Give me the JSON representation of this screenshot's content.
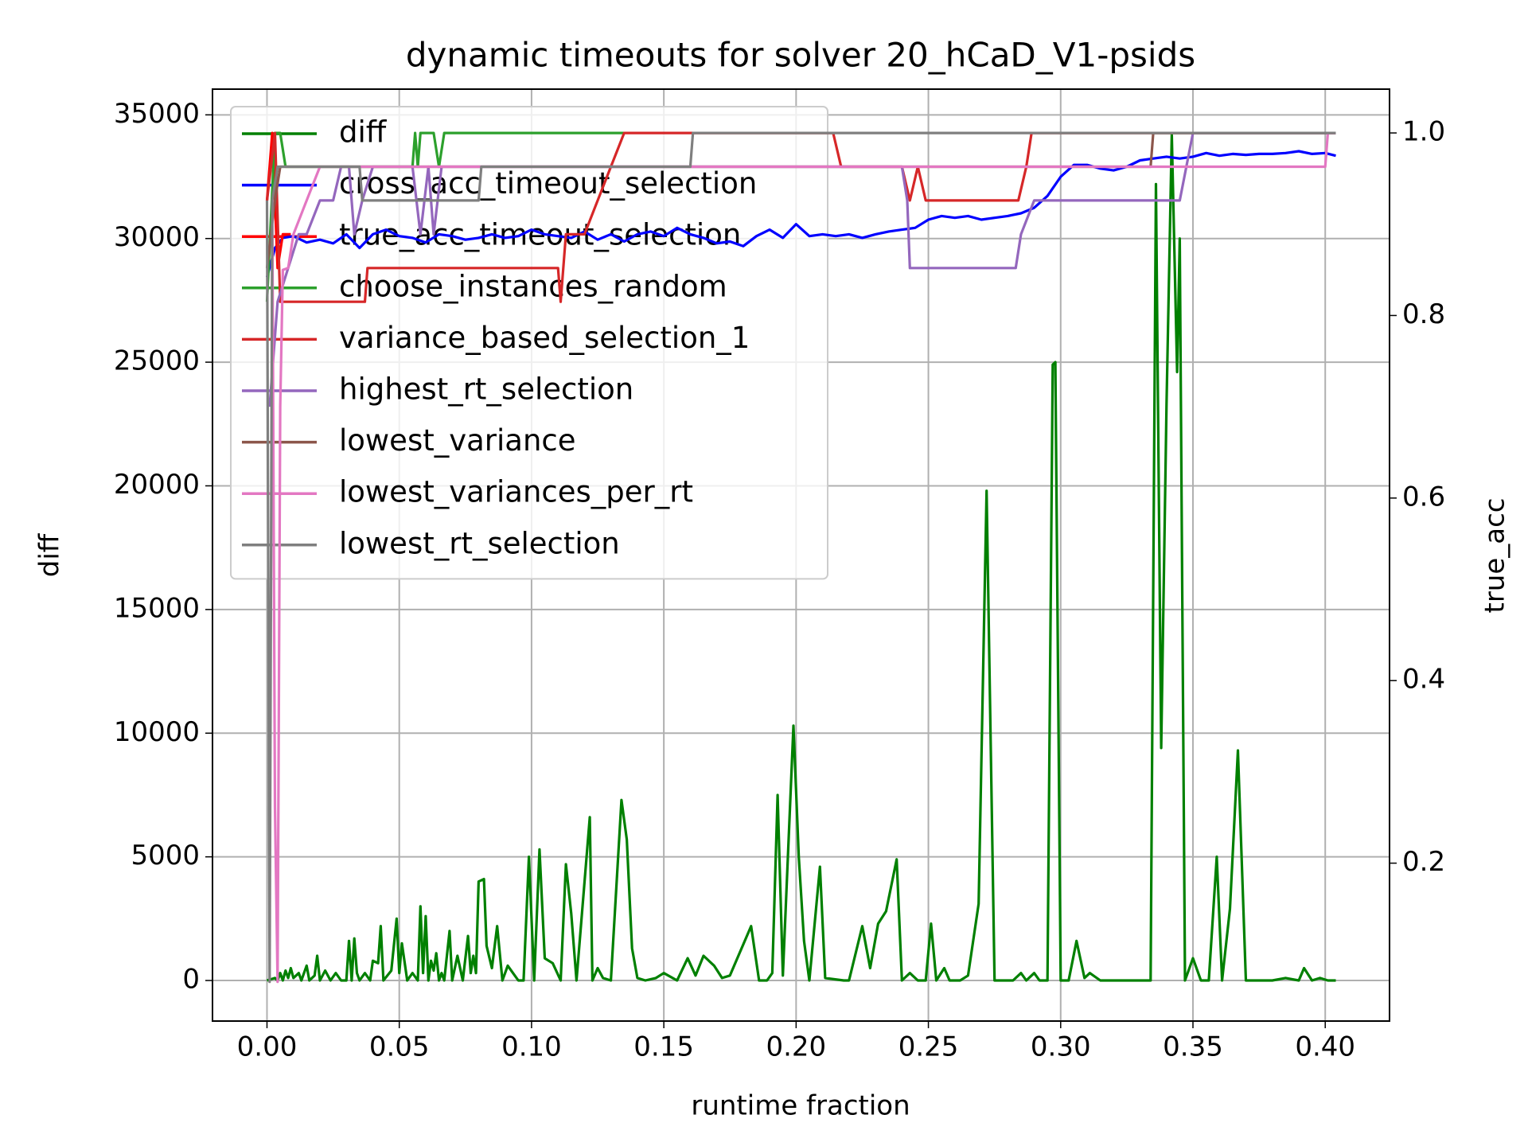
{
  "chart_data": {
    "type": "line",
    "title": "dynamic timeouts for solver 20_hCaD_V1-psids",
    "xlabel": "runtime fraction",
    "ylabel": "diff",
    "y2label": "true_acc",
    "ylabel_color": "green",
    "y2label_color": "red",
    "xlim": [
      -0.0206,
      0.4243
    ],
    "ylim": [
      -1640,
      36040
    ],
    "y2lim": [
      0.027,
      1.048
    ],
    "xticks": [
      {
        "value": 0,
        "label": "0.00"
      },
      {
        "value": 0.05,
        "label": "0.05"
      },
      {
        "value": 0.1,
        "label": "0.10"
      },
      {
        "value": 0.15,
        "label": "0.15"
      },
      {
        "value": 0.2,
        "label": "0.20"
      },
      {
        "value": 0.25,
        "label": "0.25"
      },
      {
        "value": 0.3,
        "label": "0.30"
      },
      {
        "value": 0.35,
        "label": "0.35"
      },
      {
        "value": 0.4,
        "label": "0.40"
      }
    ],
    "yticks": [
      0,
      5000,
      10000,
      15000,
      20000,
      25000,
      30000,
      35000
    ],
    "y2ticks": [
      0.2,
      0.4,
      0.6,
      0.8,
      {
        "value": 1,
        "label": "1.0"
      }
    ],
    "grid": true,
    "legend": "upper left",
    "series": [
      {
        "name": "diff",
        "color": "#008000",
        "axis": "y",
        "x": [
          0,
          0.003,
          0.004,
          0.005,
          0.006,
          0.007,
          0.008,
          0.009,
          0.01,
          0.012,
          0.013,
          0.015,
          0.016,
          0.018,
          0.019,
          0.02,
          0.022,
          0.024,
          0.026,
          0.028,
          0.03,
          0.031,
          0.032,
          0.033,
          0.034,
          0.035,
          0.037,
          0.039,
          0.04,
          0.042,
          0.043,
          0.044,
          0.047,
          0.049,
          0.05,
          0.051,
          0.053,
          0.055,
          0.057,
          0.058,
          0.059,
          0.06,
          0.061,
          0.062,
          0.063,
          0.064,
          0.065,
          0.066,
          0.067,
          0.069,
          0.07,
          0.072,
          0.074,
          0.076,
          0.077,
          0.078,
          0.079,
          0.08,
          0.082,
          0.083,
          0.085,
          0.087,
          0.089,
          0.091,
          0.093,
          0.095,
          0.097,
          0.099,
          0.101,
          0.103,
          0.105,
          0.108,
          0.111,
          0.113,
          0.115,
          0.117,
          0.122,
          0.123,
          0.125,
          0.127,
          0.13,
          0.134,
          0.136,
          0.138,
          0.14,
          0.143,
          0.147,
          0.15,
          0.155,
          0.159,
          0.162,
          0.165,
          0.169,
          0.172,
          0.175,
          0.183,
          0.186,
          0.189,
          0.191,
          0.193,
          0.195,
          0.199,
          0.201,
          0.203,
          0.205,
          0.209,
          0.211,
          0.218,
          0.22,
          0.225,
          0.228,
          0.231,
          0.234,
          0.238,
          0.24,
          0.243,
          0.246,
          0.249,
          0.251,
          0.253,
          0.256,
          0.258,
          0.262,
          0.265,
          0.269,
          0.272,
          0.275,
          0.279,
          0.282,
          0.285,
          0.287,
          0.29,
          0.292,
          0.295,
          0.297,
          0.298,
          0.3,
          0.303,
          0.306,
          0.309,
          0.311,
          0.315,
          0.32,
          0.325,
          0.33,
          0.334,
          0.336,
          0.338,
          0.34,
          0.342,
          0.344,
          0.345,
          0.347,
          0.35,
          0.353,
          0.356,
          0.359,
          0.361,
          0.364,
          0.367,
          0.37,
          0.375,
          0.38,
          0.385,
          0.39,
          0.392,
          0.395,
          0.398,
          0.401,
          0.404
        ],
        "values": [
          0,
          100,
          0,
          300,
          0,
          400,
          100,
          500,
          100,
          300,
          0,
          600,
          0,
          200,
          1000,
          0,
          400,
          0,
          300,
          0,
          0,
          1600,
          0,
          1700,
          300,
          0,
          300,
          0,
          800,
          700,
          2200,
          0,
          400,
          2500,
          300,
          1500,
          0,
          300,
          0,
          3000,
          300,
          2600,
          0,
          800,
          400,
          1100,
          0,
          300,
          0,
          2000,
          0,
          1000,
          0,
          1800,
          300,
          1000,
          300,
          4000,
          4100,
          1400,
          500,
          2200,
          0,
          600,
          300,
          0,
          0,
          5000,
          0,
          5300,
          900,
          700,
          0,
          4700,
          2700,
          0,
          6600,
          0,
          500,
          100,
          0,
          7300,
          5700,
          1300,
          100,
          0,
          100,
          300,
          0,
          900,
          200,
          1000,
          600,
          100,
          200,
          2200,
          0,
          0,
          300,
          7500,
          200,
          10300,
          5000,
          1600,
          0,
          4600,
          100,
          0,
          0,
          2200,
          500,
          2300,
          2800,
          4900,
          0,
          300,
          0,
          0,
          2300,
          0,
          500,
          0,
          0,
          200,
          3100,
          19800,
          0,
          0,
          0,
          300,
          0,
          300,
          0,
          0,
          24900,
          25000,
          0,
          0,
          1600,
          100,
          300,
          0,
          0,
          0,
          0,
          0,
          32200,
          9400,
          23300,
          34200,
          24600,
          30000,
          0,
          900,
          0,
          0,
          5000,
          0,
          2900,
          9300,
          0,
          0,
          0,
          100,
          0,
          500,
          0,
          100,
          0,
          0
        ]
      },
      {
        "name": "cross_acc_timeout_selection",
        "color": "#0000ff",
        "axis": "y2",
        "x": [
          0,
          0.003,
          0.006,
          0.01,
          0.015,
          0.02,
          0.025,
          0.03,
          0.035,
          0.04,
          0.045,
          0.05,
          0.055,
          0.06,
          0.065,
          0.07,
          0.075,
          0.08,
          0.085,
          0.09,
          0.095,
          0.1,
          0.105,
          0.11,
          0.115,
          0.12,
          0.125,
          0.13,
          0.135,
          0.14,
          0.145,
          0.15,
          0.155,
          0.16,
          0.165,
          0.17,
          0.175,
          0.18,
          0.185,
          0.19,
          0.195,
          0.2,
          0.205,
          0.21,
          0.215,
          0.22,
          0.225,
          0.23,
          0.235,
          0.24,
          0.245,
          0.25,
          0.255,
          0.26,
          0.265,
          0.27,
          0.275,
          0.28,
          0.285,
          0.29,
          0.295,
          0.3,
          0.305,
          0.31,
          0.315,
          0.32,
          0.325,
          0.33,
          0.335,
          0.34,
          0.345,
          0.35,
          0.355,
          0.36,
          0.365,
          0.37,
          0.375,
          0.38,
          0.385,
          0.39,
          0.395,
          0.4,
          0.404
        ],
        "values": [
          0.842,
          0.874,
          0.885,
          0.887,
          0.88,
          0.883,
          0.879,
          0.889,
          0.874,
          0.889,
          0.894,
          0.887,
          0.885,
          0.88,
          0.889,
          0.887,
          0.883,
          0.885,
          0.889,
          0.885,
          0.887,
          0.894,
          0.889,
          0.887,
          0.885,
          0.892,
          0.883,
          0.889,
          0.881,
          0.889,
          0.892,
          0.887,
          0.896,
          0.889,
          0.885,
          0.879,
          0.881,
          0.876,
          0.887,
          0.894,
          0.885,
          0.9,
          0.887,
          0.889,
          0.887,
          0.889,
          0.885,
          0.889,
          0.892,
          0.894,
          0.896,
          0.905,
          0.909,
          0.907,
          0.909,
          0.905,
          0.907,
          0.909,
          0.912,
          0.918,
          0.931,
          0.952,
          0.965,
          0.965,
          0.961,
          0.959,
          0.963,
          0.97,
          0.972,
          0.974,
          0.972,
          0.974,
          0.978,
          0.975,
          0.977,
          0.976,
          0.977,
          0.977,
          0.978,
          0.98,
          0.977,
          0.978,
          0.975
        ]
      },
      {
        "name": "true_acc_timeout_selection",
        "color": "#ff0000",
        "axis": "y2",
        "x": [
          0,
          0.002,
          0.004,
          0.006,
          0.009
        ],
        "values": [
          0.926,
          1.0,
          0.852,
          0.889,
          0.889
        ]
      },
      {
        "name": "choose_instances_random",
        "color": "#2ca02c",
        "axis": "y2",
        "x": [
          0,
          0.003,
          0.005,
          0.007,
          0.055,
          0.056,
          0.057,
          0.058,
          0.063,
          0.065,
          0.067,
          0.135
        ],
        "values": [
          0.815,
          1.0,
          1.0,
          0.963,
          0.963,
          1.0,
          0.963,
          1.0,
          1.0,
          0.963,
          1.0,
          1.0
        ]
      },
      {
        "name": "variance_based_selection_1",
        "color": "#d62728",
        "axis": "y2",
        "x": [
          0,
          0.003,
          0.005,
          0.008,
          0.037,
          0.038,
          0.11,
          0.111,
          0.113,
          0.12,
          0.125,
          0.13,
          0.135,
          0.214,
          0.217,
          0.24,
          0.243,
          0.246,
          0.249,
          0.284,
          0.287,
          0.289,
          0.298,
          0.3,
          0.404
        ],
        "values": [
          0.926,
          1.0,
          0.815,
          0.815,
          0.815,
          0.852,
          0.852,
          0.815,
          0.889,
          0.889,
          0.926,
          0.963,
          1.0,
          1.0,
          0.963,
          0.963,
          0.926,
          0.963,
          0.926,
          0.926,
          0.963,
          1.0,
          1.0,
          1.0,
          1.0
        ]
      },
      {
        "name": "highest_rt_selection",
        "color": "#9467bd",
        "axis": "y2",
        "x": [
          0.001,
          0.004,
          0.008,
          0.012,
          0.015,
          0.02,
          0.025,
          0.028,
          0.031,
          0.033,
          0.036,
          0.04,
          0.055,
          0.058,
          0.061,
          0.063,
          0.066,
          0.07,
          0.24,
          0.242,
          0.243,
          0.283,
          0.285,
          0.29,
          0.345,
          0.35,
          0.404
        ],
        "values": [
          0.7,
          0.815,
          0.852,
          0.889,
          0.889,
          0.926,
          0.926,
          0.963,
          0.963,
          0.889,
          0.926,
          0.963,
          0.963,
          0.889,
          0.963,
          0.889,
          0.963,
          0.963,
          0.963,
          0.926,
          0.852,
          0.852,
          0.889,
          0.926,
          0.926,
          1.0,
          1.0
        ]
      },
      {
        "name": "lowest_variance",
        "color": "#8c564b",
        "axis": "y2",
        "x": [
          0,
          0.003,
          0.005,
          0.334,
          0.335,
          0.404
        ],
        "values": [
          0.852,
          0.926,
          0.963,
          0.963,
          1.0,
          1.0
        ]
      },
      {
        "name": "lowest_variances_per_rt",
        "color": "#e377c2",
        "axis": "y2",
        "x": [
          0.002,
          0.003,
          0.004,
          0.005,
          0.006,
          0.008,
          0.01,
          0.015,
          0.02,
          0.4,
          0.401,
          0.404
        ],
        "values": [
          0.926,
          0.262,
          0.07,
          0.7,
          0.85,
          0.852,
          0.889,
          0.926,
          0.963,
          0.963,
          1.0,
          1.0
        ]
      },
      {
        "name": "lowest_rt_selection",
        "color": "#7f7f7f",
        "axis": "y2",
        "x": [
          0,
          0.001,
          0.002,
          0.004,
          0.006,
          0.035,
          0.036,
          0.08,
          0.081,
          0.16,
          0.161,
          0.404
        ],
        "values": [
          0.926,
          0.07,
          0.926,
          0.963,
          0.963,
          0.963,
          0.926,
          0.926,
          0.963,
          0.963,
          1.0,
          1.0
        ]
      }
    ]
  }
}
